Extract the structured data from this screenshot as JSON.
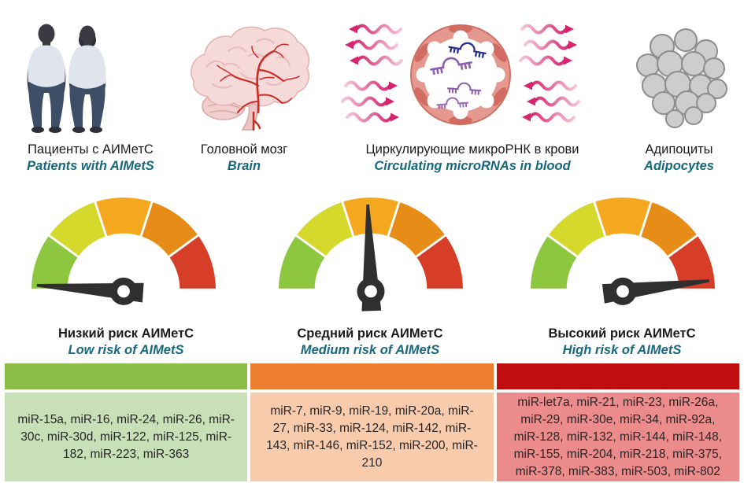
{
  "figure": {
    "panels": [
      {
        "id": "patients",
        "caption_ru": "Пациенты с АИМетС",
        "caption_en": "Patients with AIMetS"
      },
      {
        "id": "brain",
        "caption_ru": "Головной мозг",
        "caption_en": "Brain"
      },
      {
        "id": "mirna",
        "caption_ru": "Циркулирующие микроРНК в крови",
        "caption_en": "Circulating microRNAs in blood"
      },
      {
        "id": "adipocytes",
        "caption_ru": "Адипоциты",
        "caption_en": "Adipocytes"
      }
    ],
    "risk_levels": [
      {
        "id": "low",
        "label_ru": "Низкий риск АИМетС",
        "label_en": "Low risk of AIMetS",
        "needle_angle": -176,
        "header_color": "#8abc46",
        "cell_color": "#c8e0b8",
        "mirnas": "miR-15a, miR-16, miR-24, miR-26, miR-30c, miR-30d, miR-122, miR-125, miR-182, miR-223, miR-363"
      },
      {
        "id": "medium",
        "label_ru": "Средний риск АИМетС",
        "label_en": "Medium risk of AIMetS",
        "needle_angle": -92,
        "header_color": "#ec7d31",
        "cell_color": "#f8cbad",
        "mirnas": "miR-7, miR-9, miR-19, miR-20a, miR-27, miR-33, miR-124, miR-142, miR-143, miR-146, miR-152, miR-200, miR-210"
      },
      {
        "id": "high",
        "label_ru": "Высокий риск АИМетС",
        "label_en": "High risk of AIMetS",
        "needle_angle": -7,
        "header_color": "#c00d0d",
        "cell_color": "#ec8b8b",
        "mirnas": "miR-let7a, miR-21, miR-23, miR-26a, miR-29, miR-30e, miR-34, miR-92a, miR-128, miR-132, miR-144, miR-148, miR-155, miR-204, miR-218, miR-375, miR-378, miR-383, miR-503, miR-802"
      }
    ],
    "gauge_colors": [
      "#8dc63f",
      "#d5d92b",
      "#f5a81d",
      "#e78c16",
      "#d63e28"
    ],
    "colors": {
      "teal": "#17697f",
      "text": "#1c1c1c",
      "magenta": "#d6246e",
      "needle": "#2f2f2f"
    }
  }
}
